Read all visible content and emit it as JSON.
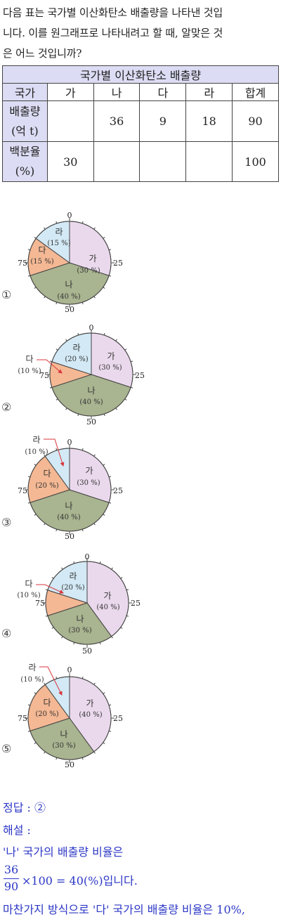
{
  "question": {
    "line1": "다음 표는 국가별 이산화탄소 배출량을 나타낸 것입",
    "line2": "니다. 이를 원그래프로 나타내려고 할 때, 알맞은 것",
    "line3": "은 어느 것입니까?"
  },
  "table": {
    "title": "국가별 이산화탄소 배출량",
    "header": [
      "국가",
      "가",
      "나",
      "다",
      "라",
      "합계"
    ],
    "row1_label_line1": "배출량",
    "row1_label_line2": "(억 t)",
    "row1_values": [
      "",
      "36",
      "9",
      "18",
      "90"
    ],
    "row2_label_line1": "백분율",
    "row2_label_line2": "(%)",
    "row2_values": [
      "30",
      "",
      "",
      "",
      "100"
    ]
  },
  "colors": {
    "ga": "#ead9ec",
    "na": "#a9b490",
    "da": "#f4b894",
    "ra": "#d3e9f5",
    "arrow": "#d8363c",
    "answer_text": "#2d38c6"
  },
  "scale_labels": {
    "top": "0",
    "right": "25",
    "bottom": "50",
    "left": "75"
  },
  "options": [
    {
      "number": "①",
      "slices": [
        {
          "name": "가",
          "percent": 30,
          "label": "가",
          "value": "(30 %)"
        },
        {
          "name": "나",
          "percent": 40,
          "label": "나",
          "value": "(40 %)"
        },
        {
          "name": "다",
          "percent": 15,
          "label": "다",
          "value": "(15 %)"
        },
        {
          "name": "라",
          "percent": 15,
          "label": "라",
          "value": "(15 %)"
        }
      ]
    },
    {
      "number": "②",
      "slices": [
        {
          "name": "가",
          "percent": 30,
          "label": "가",
          "value": "(30 %)"
        },
        {
          "name": "나",
          "percent": 40,
          "label": "나",
          "value": "(40 %)"
        },
        {
          "name": "다",
          "percent": 10,
          "label": "다",
          "value": "(10 %)"
        },
        {
          "name": "라",
          "percent": 20,
          "label": "라",
          "value": "(20 %)"
        }
      ]
    },
    {
      "number": "③",
      "slices": [
        {
          "name": "가",
          "percent": 30,
          "label": "가",
          "value": "(30 %)"
        },
        {
          "name": "나",
          "percent": 40,
          "label": "나",
          "value": "(40 %)"
        },
        {
          "name": "다",
          "percent": 20,
          "label": "다",
          "value": "(20 %)"
        },
        {
          "name": "라",
          "percent": 10,
          "label": "라",
          "value": "(10 %)"
        }
      ]
    },
    {
      "number": "④",
      "slices": [
        {
          "name": "가",
          "percent": 40,
          "label": "가",
          "value": "(40 %)"
        },
        {
          "name": "나",
          "percent": 30,
          "label": "나",
          "value": "(30 %)"
        },
        {
          "name": "다",
          "percent": 10,
          "label": "다",
          "value": "(10 %)"
        },
        {
          "name": "라",
          "percent": 20,
          "label": "라",
          "value": "(20 %)"
        }
      ]
    },
    {
      "number": "⑤",
      "slices": [
        {
          "name": "가",
          "percent": 40,
          "label": "가",
          "value": "(40 %)"
        },
        {
          "name": "나",
          "percent": 30,
          "label": "나",
          "value": "(30 %)"
        },
        {
          "name": "다",
          "percent": 20,
          "label": "다",
          "value": "(20 %)"
        },
        {
          "name": "라",
          "percent": 10,
          "label": "라",
          "value": "(10 %)"
        }
      ]
    }
  ],
  "solution": {
    "answer": "정답 : ②",
    "explanation_title": "해설 :",
    "line1": "'나' 국가의 배출량 비율은",
    "frac_num": "36",
    "frac_den": "90",
    "frac_rest": "×100 = 40(%)입니다.",
    "line3": "마찬가지 방식으로 '다' 국가의 배출량 비율은 10%,"
  }
}
